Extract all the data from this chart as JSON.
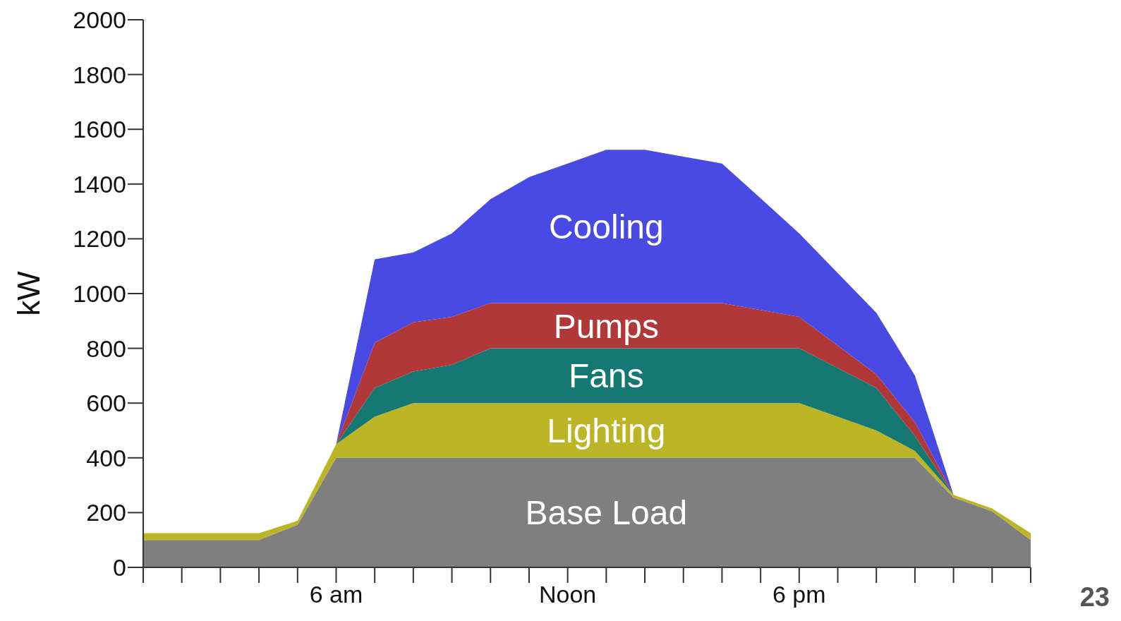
{
  "chart_data": {
    "type": "area",
    "stacked": true,
    "ylabel": "kW",
    "categories": [
      null,
      null,
      null,
      null,
      null,
      "6 am",
      null,
      null,
      null,
      null,
      null,
      "Noon",
      null,
      null,
      null,
      null,
      null,
      "6 pm",
      null,
      null,
      null,
      null,
      null,
      null
    ],
    "series": [
      {
        "name": "Base Load",
        "color": "#7f7f7f",
        "values": [
          100,
          100,
          100,
          100,
          155,
          400,
          400,
          400,
          400,
          400,
          400,
          400,
          400,
          400,
          400,
          400,
          400,
          400,
          400,
          400,
          400,
          255,
          205,
          100
        ]
      },
      {
        "name": "Lighting",
        "color": "#bcb525",
        "values": [
          25,
          25,
          25,
          25,
          15,
          50,
          150,
          200,
          200,
          200,
          200,
          200,
          200,
          200,
          200,
          200,
          200,
          200,
          150,
          100,
          25,
          10,
          10,
          25
        ]
      },
      {
        "name": "Fans",
        "color": "#157873",
        "values": [
          0,
          0,
          0,
          0,
          0,
          0,
          105,
          115,
          140,
          200,
          200,
          200,
          200,
          200,
          200,
          200,
          200,
          200,
          178,
          155,
          55,
          0,
          0,
          0
        ]
      },
      {
        "name": "Pumps",
        "color": "#b03838",
        "values": [
          0,
          0,
          0,
          0,
          0,
          0,
          165,
          180,
          175,
          165,
          165,
          165,
          165,
          165,
          165,
          165,
          140,
          115,
          82,
          50,
          50,
          0,
          0,
          0
        ]
      },
      {
        "name": "Cooling",
        "color": "#4949e3",
        "values": [
          0,
          0,
          0,
          0,
          0,
          0,
          305,
          255,
          305,
          380,
          460,
          510,
          560,
          560,
          535,
          510,
          408,
          305,
          265,
          225,
          170,
          0,
          0,
          0
        ]
      }
    ],
    "ylim": [
      0,
      2000
    ],
    "yticks": [
      0,
      200,
      400,
      600,
      800,
      1000,
      1200,
      1400,
      1600,
      1800,
      2000
    ],
    "grid": false,
    "annotations": [
      "23"
    ]
  }
}
